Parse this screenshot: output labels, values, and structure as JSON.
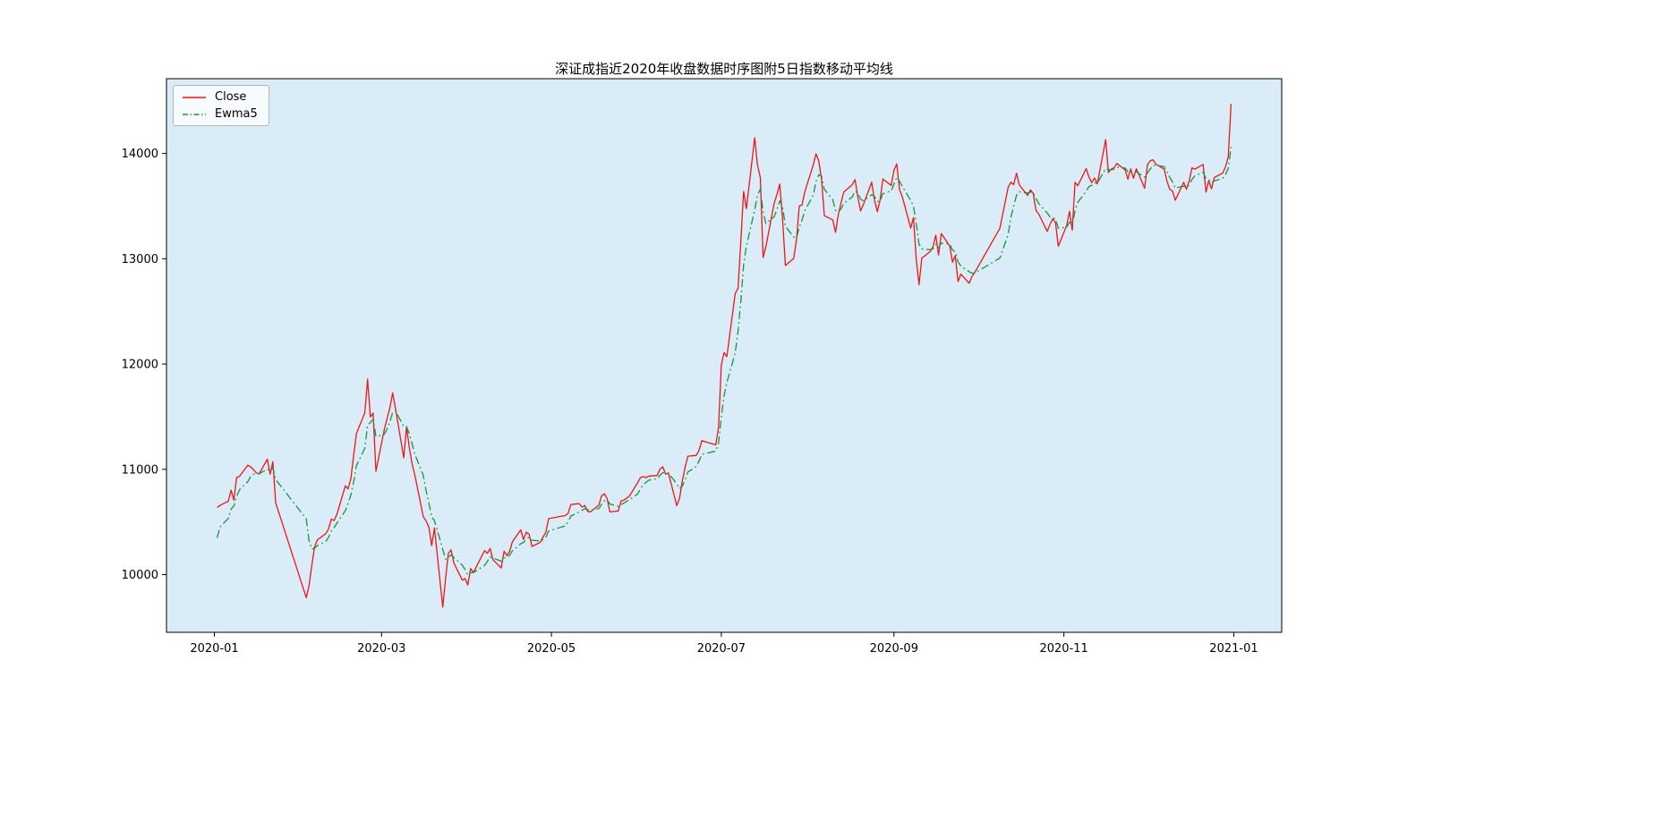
{
  "chart": {
    "title": "深证成指近2020年收盘数据时序图附5日指数移动平均线",
    "colors": {
      "figure_bg": "#ffffff",
      "plot_bg": "#d9ecf8",
      "close": "#f01515",
      "ewma": "#15973a",
      "axis": "#000000",
      "legend_border": "#b6b6b6"
    },
    "legend": {
      "position": "upper left",
      "items": [
        {
          "label": "Close",
          "style": "solid",
          "color_key": "close"
        },
        {
          "label": "Ewma5",
          "style": "dashdot",
          "color_key": "ewma"
        }
      ]
    },
    "axes": {
      "ylim": [
        9452,
        14710
      ],
      "y_ticks": [
        10000,
        11000,
        12000,
        13000,
        14000
      ],
      "x_tick_labels": [
        "2020-01",
        "2020-03",
        "2020-05",
        "2020-07",
        "2020-09",
        "2020-11",
        "2021-01"
      ],
      "x_tick_dates": [
        "2020-01-01",
        "2020-03-01",
        "2020-05-01",
        "2020-07-01",
        "2020-09-01",
        "2020-11-01",
        "2021-01-01"
      ],
      "x_margin_days": 18.2,
      "grid": false
    }
  },
  "chart_data": {
    "type": "line",
    "title": "深证成指近2020年收盘数据时序图附5日指数移动平均线",
    "xlabel": "",
    "ylabel": "",
    "x_type": "date",
    "legend_position": "upper left",
    "grid": false,
    "x": [
      "2020-01-02",
      "2020-01-03",
      "2020-01-06",
      "2020-01-07",
      "2020-01-08",
      "2020-01-09",
      "2020-01-10",
      "2020-01-13",
      "2020-01-14",
      "2020-01-15",
      "2020-01-16",
      "2020-01-17",
      "2020-01-20",
      "2020-01-21",
      "2020-01-22",
      "2020-01-23",
      "2020-02-03",
      "2020-02-04",
      "2020-02-05",
      "2020-02-06",
      "2020-02-07",
      "2020-02-10",
      "2020-02-11",
      "2020-02-12",
      "2020-02-13",
      "2020-02-14",
      "2020-02-17",
      "2020-02-18",
      "2020-02-19",
      "2020-02-20",
      "2020-02-21",
      "2020-02-24",
      "2020-02-25",
      "2020-02-26",
      "2020-02-27",
      "2020-02-28",
      "2020-03-02",
      "2020-03-03",
      "2020-03-04",
      "2020-03-05",
      "2020-03-06",
      "2020-03-09",
      "2020-03-10",
      "2020-03-11",
      "2020-03-12",
      "2020-03-13",
      "2020-03-16",
      "2020-03-17",
      "2020-03-18",
      "2020-03-19",
      "2020-03-20",
      "2020-03-23",
      "2020-03-24",
      "2020-03-25",
      "2020-03-26",
      "2020-03-27",
      "2020-03-30",
      "2020-03-31",
      "2020-04-01",
      "2020-04-02",
      "2020-04-03",
      "2020-04-07",
      "2020-04-08",
      "2020-04-09",
      "2020-04-10",
      "2020-04-13",
      "2020-04-14",
      "2020-04-15",
      "2020-04-16",
      "2020-04-17",
      "2020-04-20",
      "2020-04-21",
      "2020-04-22",
      "2020-04-23",
      "2020-04-24",
      "2020-04-27",
      "2020-04-28",
      "2020-04-29",
      "2020-04-30",
      "2020-05-06",
      "2020-05-07",
      "2020-05-08",
      "2020-05-11",
      "2020-05-12",
      "2020-05-13",
      "2020-05-14",
      "2020-05-15",
      "2020-05-18",
      "2020-05-19",
      "2020-05-20",
      "2020-05-21",
      "2020-05-22",
      "2020-05-25",
      "2020-05-26",
      "2020-05-27",
      "2020-05-28",
      "2020-05-29",
      "2020-06-01",
      "2020-06-02",
      "2020-06-03",
      "2020-06-04",
      "2020-06-05",
      "2020-06-08",
      "2020-06-09",
      "2020-06-10",
      "2020-06-11",
      "2020-06-12",
      "2020-06-15",
      "2020-06-16",
      "2020-06-17",
      "2020-06-18",
      "2020-06-19",
      "2020-06-22",
      "2020-06-23",
      "2020-06-24",
      "2020-06-29",
      "2020-06-30",
      "2020-07-01",
      "2020-07-02",
      "2020-07-03",
      "2020-07-06",
      "2020-07-07",
      "2020-07-08",
      "2020-07-09",
      "2020-07-10",
      "2020-07-13",
      "2020-07-14",
      "2020-07-15",
      "2020-07-16",
      "2020-07-17",
      "2020-07-20",
      "2020-07-21",
      "2020-07-22",
      "2020-07-23",
      "2020-07-24",
      "2020-07-27",
      "2020-07-28",
      "2020-07-29",
      "2020-07-30",
      "2020-07-31",
      "2020-08-03",
      "2020-08-04",
      "2020-08-05",
      "2020-08-06",
      "2020-08-07",
      "2020-08-10",
      "2020-08-11",
      "2020-08-12",
      "2020-08-13",
      "2020-08-14",
      "2020-08-17",
      "2020-08-18",
      "2020-08-19",
      "2020-08-20",
      "2020-08-21",
      "2020-08-24",
      "2020-08-25",
      "2020-08-26",
      "2020-08-27",
      "2020-08-28",
      "2020-08-31",
      "2020-09-01",
      "2020-09-02",
      "2020-09-03",
      "2020-09-04",
      "2020-09-07",
      "2020-09-08",
      "2020-09-09",
      "2020-09-10",
      "2020-09-11",
      "2020-09-14",
      "2020-09-15",
      "2020-09-16",
      "2020-09-17",
      "2020-09-18",
      "2020-09-21",
      "2020-09-22",
      "2020-09-23",
      "2020-09-24",
      "2020-09-25",
      "2020-09-28",
      "2020-09-29",
      "2020-09-30",
      "2020-10-09",
      "2020-10-12",
      "2020-10-13",
      "2020-10-14",
      "2020-10-15",
      "2020-10-16",
      "2020-10-19",
      "2020-10-20",
      "2020-10-21",
      "2020-10-22",
      "2020-10-23",
      "2020-10-26",
      "2020-10-27",
      "2020-10-28",
      "2020-10-29",
      "2020-10-30",
      "2020-11-02",
      "2020-11-03",
      "2020-11-04",
      "2020-11-05",
      "2020-11-06",
      "2020-11-09",
      "2020-11-10",
      "2020-11-11",
      "2020-11-12",
      "2020-11-13",
      "2020-11-16",
      "2020-11-17",
      "2020-11-18",
      "2020-11-19",
      "2020-11-20",
      "2020-11-23",
      "2020-11-24",
      "2020-11-25",
      "2020-11-26",
      "2020-11-27",
      "2020-11-30",
      "2020-12-01",
      "2020-12-02",
      "2020-12-03",
      "2020-12-04",
      "2020-12-07",
      "2020-12-08",
      "2020-12-09",
      "2020-12-10",
      "2020-12-11",
      "2020-12-14",
      "2020-12-15",
      "2020-12-16",
      "2020-12-17",
      "2020-12-18",
      "2020-12-21",
      "2020-12-22",
      "2020-12-23",
      "2020-12-24",
      "2020-12-25",
      "2020-12-28",
      "2020-12-29",
      "2020-12-30",
      "2020-12-31"
    ],
    "series": [
      {
        "name": "Close",
        "values": [
          10638.8,
          10656.4,
          10698.3,
          10802.9,
          10706.9,
          10924.1,
          10932.0,
          11040.0,
          11023.3,
          10997.9,
          10967.6,
          10954.4,
          11095.4,
          10953.4,
          11072.1,
          10681.9,
          9779.7,
          9893.3,
          10089.7,
          10267.9,
          10330.4,
          10389.1,
          10434.8,
          10527.0,
          10513.2,
          10572.4,
          10842.6,
          10815.3,
          10910.9,
          11131.0,
          11338.4,
          11537.2,
          11856.8,
          11497.6,
          11534.3,
          10980.8,
          11375.9,
          11484.2,
          11582.8,
          11725.9,
          11582.6,
          11108.5,
          11403.5,
          11200.3,
          11048.6,
          10940.7,
          10550.3,
          10510.1,
          10452.3,
          10276.1,
          10442.8,
          9691.5,
          9959.8,
          10200.5,
          10234.0,
          10109.9,
          9947.5,
          9962.3,
          9900.1,
          10056.4,
          10020.1,
          10227.8,
          10201.0,
          10248.9,
          10141.6,
          10063.7,
          10222.7,
          10180.7,
          10220.3,
          10312.8,
          10425.8,
          10333.6,
          10403.1,
          10383.1,
          10267.8,
          10306.9,
          10357.7,
          10401.3,
          10532.0,
          10560.1,
          10580.9,
          10664.6,
          10674.3,
          10641.0,
          10656.7,
          10600.3,
          10595.6,
          10659.0,
          10747.4,
          10767.5,
          10724.1,
          10595.0,
          10603.6,
          10700.0,
          10707.4,
          10725.0,
          10746.1,
          10874.1,
          10921.2,
          10930.5,
          10920.8,
          10936.2,
          10941.1,
          11003.4,
          11023.1,
          10953.2,
          10965.7,
          10655.0,
          10722.3,
          10890.2,
          11017.6,
          11124.2,
          11132.3,
          11179.5,
          11272.3,
          11232.8,
          11398.1,
          11992.3,
          12110.0,
          12070.5,
          12668.6,
          12721.0,
          13163.9,
          13640.0,
          13475.0,
          14149.2,
          13890.0,
          13770.4,
          13011.9,
          13114.2,
          13529.7,
          13611.5,
          13710.3,
          13380.7,
          12935.7,
          13002.7,
          13182.1,
          13502.0,
          13510.5,
          13637.0,
          13890.0,
          13996.8,
          13930.2,
          13753.5,
          13408.9,
          13370.0,
          13250.5,
          13419.3,
          13533.7,
          13635.0,
          13702.5,
          13751.9,
          13588.0,
          13454.6,
          13513.3,
          13728.2,
          13557.4,
          13446.9,
          13557.0,
          13758.2,
          13696.8,
          13841.0,
          13900.2,
          13656.0,
          13585.3,
          13291.5,
          13391.9,
          12993.3,
          12753.0,
          13006.0,
          13068.5,
          13114.2,
          13223.1,
          13035.9,
          13239.8,
          13120.6,
          12968.0,
          13029.0,
          12783.5,
          12854.0,
          12767.0,
          12833.0,
          12870.5,
          13289.0,
          13680.4,
          13727.0,
          13704.3,
          13813.0,
          13700.0,
          13601.0,
          13654.0,
          13620.6,
          13458.0,
          13424.1,
          13259.5,
          13325.0,
          13379.5,
          13343.0,
          13118.0,
          13317.0,
          13450.5,
          13271.1,
          13725.4,
          13693.1,
          13856.0,
          13775.0,
          13722.0,
          13767.3,
          13710.9,
          14131.9,
          13819.0,
          13852.0,
          13863.0,
          13905.0,
          13844.0,
          13755.0,
          13854.0,
          13765.0,
          13855.0,
          13670.1,
          13892.9,
          13931.0,
          13940.2,
          13899.0,
          13850.0,
          13738.0,
          13660.9,
          13642.0,
          13555.2,
          13725.4,
          13660.0,
          13743.1,
          13862.9,
          13850.0,
          13895.0,
          13633.3,
          13740.0,
          13664.0,
          13771.0,
          13813.0,
          13870.0,
          13970.5,
          14470.7
        ]
      },
      {
        "name": "Ewma5",
        "derived_from": "Close",
        "method": "ewma",
        "span": 5,
        "init": 10350.0
      }
    ],
    "ylim": [
      9452,
      14710
    ]
  }
}
